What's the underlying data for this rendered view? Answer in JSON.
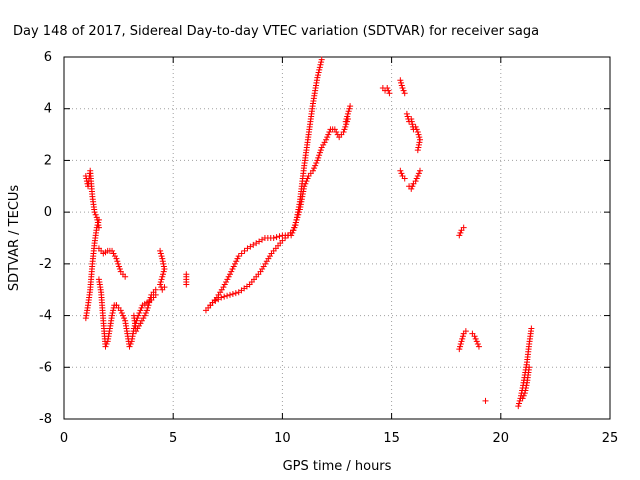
{
  "chart_data": {
    "type": "scatter",
    "title": "Day 148 of 2017, Sidereal Day-to-day VTEC variation (SDTVAR) for receiver saga",
    "xlabel": "GPS time / hours",
    "ylabel": "SDTVAR / TECUs",
    "xlim": [
      0,
      25
    ],
    "ylim": [
      -8,
      6
    ],
    "xticks": [
      "0",
      "5",
      "10",
      "15",
      "20",
      "25"
    ],
    "yticks": [
      "-8",
      "-6",
      "-4",
      "-2",
      "0",
      "2",
      "4",
      "6"
    ],
    "grid": true,
    "marker": "+",
    "color": "#ff0000",
    "segments": [
      [
        [
          1.0,
          1.4
        ],
        [
          1.1,
          1.0
        ],
        [
          1.2,
          1.6
        ],
        [
          1.3,
          0.6
        ],
        [
          1.4,
          0.0
        ],
        [
          1.5,
          -0.2
        ],
        [
          1.6,
          -0.6
        ]
      ],
      [
        [
          1.0,
          -4.1
        ],
        [
          1.1,
          -3.6
        ],
        [
          1.2,
          -3.0
        ],
        [
          1.3,
          -2.0
        ],
        [
          1.4,
          -1.2
        ],
        [
          1.5,
          -0.6
        ],
        [
          1.6,
          -0.3
        ]
      ],
      [
        [
          1.6,
          -1.4
        ],
        [
          1.8,
          -1.6
        ],
        [
          2.0,
          -1.5
        ],
        [
          2.2,
          -1.5
        ],
        [
          2.4,
          -1.8
        ],
        [
          2.6,
          -2.3
        ],
        [
          2.8,
          -2.5
        ]
      ],
      [
        [
          1.6,
          -2.6
        ],
        [
          1.7,
          -3.1
        ],
        [
          1.8,
          -4.2
        ],
        [
          1.9,
          -5.2
        ],
        [
          2.0,
          -5.0
        ],
        [
          2.1,
          -4.5
        ],
        [
          2.2,
          -4.0
        ],
        [
          2.3,
          -3.6
        ],
        [
          2.4,
          -3.6
        ]
      ],
      [
        [
          2.4,
          -3.6
        ],
        [
          2.6,
          -3.8
        ],
        [
          2.8,
          -4.2
        ],
        [
          3.0,
          -5.2
        ],
        [
          3.1,
          -5.0
        ],
        [
          3.2,
          -4.5
        ],
        [
          3.4,
          -4.0
        ],
        [
          3.6,
          -3.6
        ],
        [
          3.8,
          -3.5
        ],
        [
          4.0,
          -3.4
        ],
        [
          4.2,
          -3.2
        ]
      ],
      [
        [
          3.2,
          -4.0
        ],
        [
          3.3,
          -4.6
        ],
        [
          3.5,
          -4.3
        ],
        [
          3.7,
          -4.0
        ],
        [
          3.8,
          -3.8
        ],
        [
          4.0,
          -3.2
        ],
        [
          4.2,
          -3.0
        ]
      ],
      [
        [
          4.4,
          -1.5
        ],
        [
          4.5,
          -1.8
        ],
        [
          4.6,
          -2.2
        ],
        [
          4.4,
          -2.8
        ],
        [
          4.5,
          -3.0
        ],
        [
          4.6,
          -2.9
        ]
      ],
      [
        [
          5.6,
          -2.4
        ],
        [
          5.6,
          -2.6
        ],
        [
          5.6,
          -2.8
        ]
      ],
      [
        [
          6.5,
          -3.8
        ],
        [
          6.8,
          -3.5
        ],
        [
          7.2,
          -3.3
        ],
        [
          7.6,
          -3.2
        ],
        [
          8.0,
          -3.1
        ],
        [
          8.5,
          -2.8
        ],
        [
          9.0,
          -2.3
        ],
        [
          9.5,
          -1.6
        ],
        [
          10.0,
          -1.1
        ],
        [
          10.5,
          -0.7
        ],
        [
          10.8,
          0.1
        ],
        [
          11.0,
          1.0
        ],
        [
          11.2,
          1.4
        ],
        [
          11.4,
          1.6
        ],
        [
          11.6,
          2.0
        ],
        [
          11.8,
          2.5
        ],
        [
          12.0,
          2.8
        ],
        [
          12.2,
          3.2
        ],
        [
          12.4,
          3.2
        ],
        [
          12.6,
          2.9
        ],
        [
          12.8,
          3.1
        ],
        [
          13.0,
          3.6
        ]
      ],
      [
        [
          6.7,
          -3.6
        ],
        [
          7.0,
          -3.3
        ],
        [
          7.3,
          -2.9
        ],
        [
          7.6,
          -2.4
        ],
        [
          8.0,
          -1.7
        ],
        [
          8.4,
          -1.4
        ],
        [
          8.8,
          -1.2
        ],
        [
          9.2,
          -1.0
        ],
        [
          9.6,
          -1.0
        ],
        [
          10.0,
          -0.9
        ],
        [
          10.4,
          -0.9
        ],
        [
          10.6,
          -0.5
        ],
        [
          10.8,
          0.4
        ],
        [
          11.0,
          1.8
        ],
        [
          11.2,
          3.0
        ],
        [
          11.4,
          4.2
        ],
        [
          11.6,
          5.2
        ],
        [
          11.8,
          5.9
        ]
      ],
      [
        [
          12.9,
          3.5
        ],
        [
          13.0,
          3.8
        ],
        [
          13.1,
          4.1
        ]
      ],
      [
        [
          14.6,
          4.8
        ],
        [
          14.7,
          4.7
        ],
        [
          14.8,
          4.8
        ],
        [
          14.9,
          4.6
        ]
      ],
      [
        [
          15.4,
          5.1
        ],
        [
          15.5,
          4.8
        ],
        [
          15.6,
          4.6
        ]
      ],
      [
        [
          15.4,
          1.6
        ],
        [
          15.5,
          1.4
        ],
        [
          15.6,
          1.3
        ]
      ],
      [
        [
          15.7,
          3.8
        ],
        [
          15.8,
          3.5
        ],
        [
          15.9,
          3.6
        ],
        [
          16.0,
          3.2
        ],
        [
          16.1,
          3.3
        ],
        [
          16.2,
          3.1
        ],
        [
          16.3,
          2.8
        ],
        [
          16.2,
          2.4
        ]
      ],
      [
        [
          15.8,
          1.0
        ],
        [
          15.9,
          0.9
        ],
        [
          16.0,
          1.1
        ],
        [
          16.1,
          1.2
        ],
        [
          16.2,
          1.4
        ],
        [
          16.3,
          1.6
        ]
      ],
      [
        [
          18.1,
          -0.9
        ],
        [
          18.2,
          -0.7
        ],
        [
          18.3,
          -0.6
        ]
      ],
      [
        [
          18.1,
          -5.3
        ],
        [
          18.2,
          -5.0
        ],
        [
          18.3,
          -4.7
        ],
        [
          18.4,
          -4.6
        ]
      ],
      [
        [
          18.7,
          -4.7
        ],
        [
          18.8,
          -4.8
        ],
        [
          18.9,
          -5.0
        ],
        [
          19.0,
          -5.2
        ]
      ],
      [
        [
          19.3,
          -7.3
        ]
      ],
      [
        [
          20.8,
          -7.5
        ],
        [
          20.9,
          -7.2
        ],
        [
          21.0,
          -6.8
        ],
        [
          21.1,
          -6.3
        ],
        [
          21.2,
          -5.8
        ],
        [
          21.3,
          -5.1
        ],
        [
          21.4,
          -4.5
        ]
      ],
      [
        [
          21.0,
          -7.2
        ],
        [
          21.1,
          -7.0
        ],
        [
          21.2,
          -6.6
        ],
        [
          21.3,
          -6.0
        ]
      ]
    ]
  }
}
